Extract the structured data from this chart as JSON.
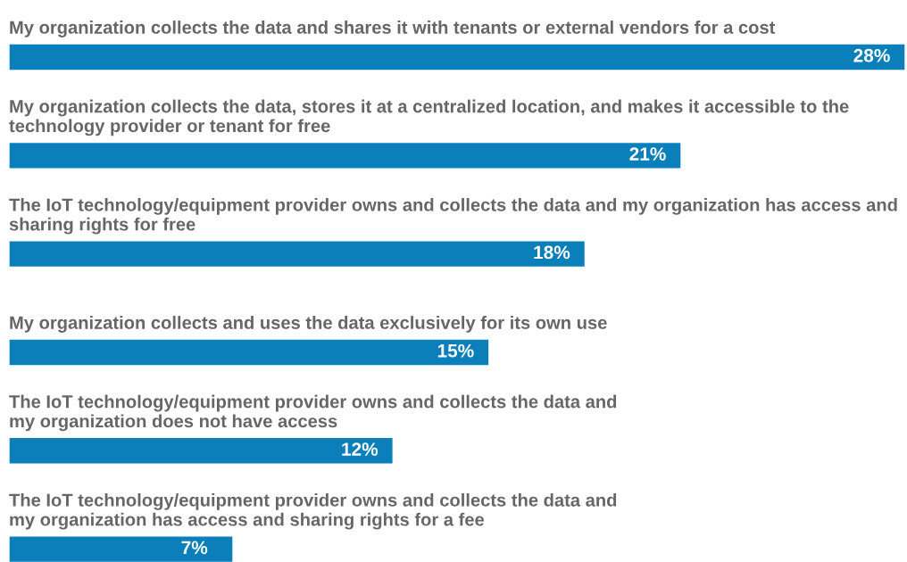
{
  "chart_data": {
    "type": "bar",
    "orientation": "horizontal",
    "categories": [
      "My organization collects the data and shares it with tenants or external vendors for a cost",
      "My organization collects the data, stores it at a centralized location, and makes it accessible to the\ntechnology provider or tenant for free",
      "The IoT technology/equipment provider owns and collects the data and my organization has access and\nsharing rights for free",
      "My organization collects and uses the data exclusively for its own use",
      "The IoT technology/equipment provider owns and collects the data and\nmy organization does not have access",
      "The IoT technology/equipment provider owns and collects the data and\nmy organization has access and sharing rights for a fee"
    ],
    "values": [
      28,
      21,
      18,
      15,
      12,
      7
    ],
    "value_labels": [
      "28%",
      "21%",
      "18%",
      "15%",
      "12%",
      "7%"
    ],
    "color": "#0a7fba",
    "legend": false
  }
}
